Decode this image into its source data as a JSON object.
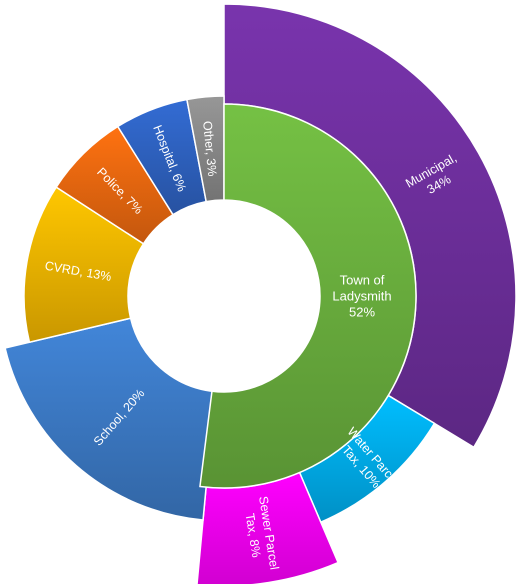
{
  "chart_data": {
    "type": "sunburst",
    "title": "",
    "inner": {
      "name": "Town of Ladysmith",
      "value": 52,
      "label_lines": [
        "Town of",
        "Ladysmith",
        "52%"
      ],
      "color": "#6cb33f"
    },
    "outer": [
      {
        "name": "Municipal",
        "value": 34,
        "label_lines": [
          "Municipal,",
          "34%"
        ],
        "color": "#7030a0"
      },
      {
        "name": "Water Parcel Tax",
        "value": 10,
        "label_lines": [
          "Water Parcel",
          "Tax, 10%"
        ],
        "color": "#00b0f0"
      },
      {
        "name": "Sewer Parcel Tax",
        "value": 8,
        "label_lines": [
          "Sewer Parcel",
          "Tax, 8%"
        ],
        "color": "#ff00ff"
      },
      {
        "name": "School",
        "value": 20,
        "label_lines": [
          "School, 20%"
        ],
        "color": "#3d7cc9"
      },
      {
        "name": "CVRD",
        "value": 13,
        "label_lines": [
          "CVRD, 13%"
        ],
        "color": "#f5b800"
      },
      {
        "name": "Police",
        "value": 7,
        "label_lines": [
          "Police, 7%"
        ],
        "color": "#ee6a10"
      },
      {
        "name": "Hospital",
        "value": 6,
        "label_lines": [
          "Hospital, 6%"
        ],
        "color": "#2f64c4"
      },
      {
        "name": "Other",
        "value": 3,
        "label_lines": [
          "Other, 3%"
        ],
        "color": "#8c8c8c"
      }
    ]
  }
}
